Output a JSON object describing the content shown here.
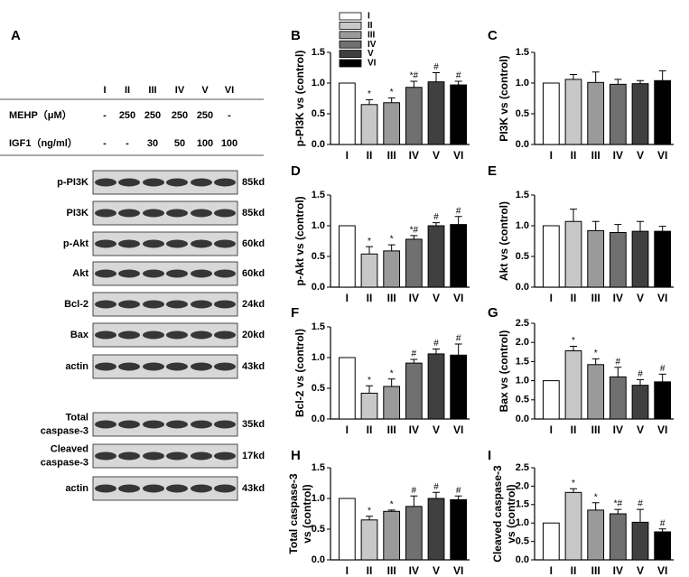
{
  "blot": {
    "panel": "A",
    "lanes": [
      "I",
      "II",
      "III",
      "IV",
      "V",
      "VI"
    ],
    "treatments": [
      {
        "label": "MEHP（μM）",
        "cells": [
          "-",
          "250",
          "250",
          "250",
          "250",
          "-"
        ]
      },
      {
        "label": "IGF1（ng/ml）",
        "cells": [
          "-",
          "-",
          "30",
          "50",
          "100",
          "100"
        ]
      }
    ],
    "rows": [
      {
        "label": [
          "p-PI3K"
        ],
        "size": "85kd"
      },
      {
        "label": [
          "PI3K"
        ],
        "size": "85kd"
      },
      {
        "label": [
          "p-Akt"
        ],
        "size": "60kd"
      },
      {
        "label": [
          "Akt"
        ],
        "size": "60kd"
      },
      {
        "label": [
          "Bcl-2"
        ],
        "size": "24kd"
      },
      {
        "label": [
          "Bax"
        ],
        "size": "20kd"
      },
      {
        "label": [
          "actin"
        ],
        "size": "43kd"
      },
      {
        "label": [
          "Total",
          "caspase-3"
        ],
        "size": "35kd"
      },
      {
        "label": [
          "Cleaved",
          "caspase-3"
        ],
        "size": "17kd"
      },
      {
        "label": [
          "actin"
        ],
        "size": "43kd"
      }
    ]
  },
  "chart_data": [
    {
      "type": "bar",
      "panel": "B",
      "ylabel": [
        "p-PI3K vs (control)"
      ],
      "categories": [
        "I",
        "II",
        "III",
        "IV",
        "V",
        "VI"
      ],
      "colors": [
        "#ffffff",
        "#c8c8c8",
        "#9a9a9a",
        "#707070",
        "#404040",
        "#000000"
      ],
      "values": [
        1.0,
        0.65,
        0.68,
        0.93,
        1.02,
        0.97
      ],
      "errors": [
        0,
        0.08,
        0.08,
        0.1,
        0.15,
        0.06
      ],
      "annotations": [
        null,
        "*",
        "*",
        "*#",
        "#",
        "#"
      ],
      "ylim": [
        0,
        1.5
      ],
      "yticks": [
        {
          "value": 0,
          "label": "0.0"
        },
        {
          "value": 0.5,
          "label": "0.5"
        },
        {
          "value": 1,
          "label": "1.0"
        },
        {
          "value": 1.5,
          "label": "1.5"
        }
      ]
    },
    {
      "type": "bar",
      "panel": "C",
      "ylabel": [
        "PI3K vs (control)"
      ],
      "categories": [
        "I",
        "II",
        "III",
        "IV",
        "V",
        "VI"
      ],
      "colors": [
        "#ffffff",
        "#c8c8c8",
        "#9a9a9a",
        "#707070",
        "#404040",
        "#000000"
      ],
      "values": [
        1.0,
        1.06,
        1.01,
        0.98,
        0.99,
        1.04
      ],
      "errors": [
        0,
        0.08,
        0.17,
        0.08,
        0.05,
        0.16
      ],
      "ylim": [
        0,
        1.5
      ],
      "yticks": [
        {
          "value": 0,
          "label": "0.0"
        },
        {
          "value": 0.5,
          "label": "0.5"
        },
        {
          "value": 1,
          "label": "1.0"
        },
        {
          "value": 1.5,
          "label": "1.5"
        }
      ]
    },
    {
      "type": "bar",
      "panel": "D",
      "ylabel": [
        "p-Akt vs (control)"
      ],
      "categories": [
        "I",
        "II",
        "III",
        "IV",
        "V",
        "VI"
      ],
      "colors": [
        "#ffffff",
        "#c8c8c8",
        "#9a9a9a",
        "#707070",
        "#404040",
        "#000000"
      ],
      "values": [
        1.0,
        0.54,
        0.59,
        0.78,
        1.0,
        1.02
      ],
      "errors": [
        0,
        0.12,
        0.1,
        0.06,
        0.05,
        0.13
      ],
      "annotations": [
        null,
        "*",
        "*",
        "*#",
        "#",
        "#"
      ],
      "ylim": [
        0,
        1.5
      ],
      "yticks": [
        {
          "value": 0,
          "label": "0.0"
        },
        {
          "value": 0.5,
          "label": "0.5"
        },
        {
          "value": 1,
          "label": "1.0"
        },
        {
          "value": 1.5,
          "label": "1.5"
        }
      ]
    },
    {
      "type": "bar",
      "panel": "E",
      "ylabel": [
        "Akt vs (control)"
      ],
      "categories": [
        "I",
        "II",
        "III",
        "IV",
        "V",
        "VI"
      ],
      "colors": [
        "#ffffff",
        "#c8c8c8",
        "#9a9a9a",
        "#707070",
        "#404040",
        "#000000"
      ],
      "values": [
        1.0,
        1.07,
        0.92,
        0.89,
        0.91,
        0.91
      ],
      "errors": [
        0,
        0.2,
        0.15,
        0.13,
        0.16,
        0.08
      ],
      "ylim": [
        0,
        1.5
      ],
      "yticks": [
        {
          "value": 0,
          "label": "0.0"
        },
        {
          "value": 0.5,
          "label": "0.5"
        },
        {
          "value": 1,
          "label": "1.0"
        },
        {
          "value": 1.5,
          "label": "1.5"
        }
      ]
    },
    {
      "type": "bar",
      "panel": "F",
      "ylabel": [
        "Bcl-2 vs (control)"
      ],
      "categories": [
        "I",
        "II",
        "III",
        "IV",
        "V",
        "VI"
      ],
      "colors": [
        "#ffffff",
        "#c8c8c8",
        "#9a9a9a",
        "#707070",
        "#404040",
        "#000000"
      ],
      "values": [
        1.0,
        0.42,
        0.53,
        0.91,
        1.06,
        1.04
      ],
      "errors": [
        0,
        0.12,
        0.12,
        0.06,
        0.08,
        0.18
      ],
      "annotations": [
        null,
        "*",
        "*",
        "#",
        "#",
        "#"
      ],
      "ylim": [
        0,
        1.5
      ],
      "yticks": [
        {
          "value": 0,
          "label": "0.0"
        },
        {
          "value": 0.5,
          "label": "0.5"
        },
        {
          "value": 1,
          "label": "1.0"
        },
        {
          "value": 1.5,
          "label": "1.5"
        }
      ]
    },
    {
      "type": "bar",
      "panel": "G",
      "ylabel": [
        "Bax vs (control)"
      ],
      "categories": [
        "I",
        "II",
        "III",
        "IV",
        "V",
        "VI"
      ],
      "colors": [
        "#ffffff",
        "#c8c8c8",
        "#9a9a9a",
        "#707070",
        "#404040",
        "#000000"
      ],
      "values": [
        1.0,
        1.78,
        1.42,
        1.1,
        0.88,
        0.97
      ],
      "errors": [
        0,
        0.12,
        0.15,
        0.25,
        0.15,
        0.2
      ],
      "annotations": [
        null,
        "*",
        "*",
        "#",
        "#",
        "#"
      ],
      "ylim": [
        0,
        2.5
      ],
      "yticks": [
        {
          "value": 0,
          "label": "0.0"
        },
        {
          "value": 0.5,
          "label": "0.5"
        },
        {
          "value": 1,
          "label": "1.0"
        },
        {
          "value": 1.5,
          "label": "1.5"
        },
        {
          "value": 2,
          "label": "2.0"
        },
        {
          "value": 2.5,
          "label": "2.5"
        }
      ]
    },
    {
      "type": "bar",
      "panel": "H",
      "ylabel": [
        "Total  caspase-3",
        "vs (control)"
      ],
      "categories": [
        "I",
        "II",
        "III",
        "IV",
        "V",
        "VI"
      ],
      "colors": [
        "#ffffff",
        "#c8c8c8",
        "#9a9a9a",
        "#707070",
        "#404040",
        "#000000"
      ],
      "values": [
        1.0,
        0.65,
        0.79,
        0.87,
        1.0,
        0.98
      ],
      "errors": [
        0,
        0.06,
        0.02,
        0.17,
        0.1,
        0.06
      ],
      "annotations": [
        null,
        "*",
        "*",
        "#",
        "#",
        "#"
      ],
      "ylim": [
        0,
        1.5
      ],
      "yticks": [
        {
          "value": 0,
          "label": "0.0"
        },
        {
          "value": 0.5,
          "label": "0.5"
        },
        {
          "value": 1,
          "label": "1.0"
        },
        {
          "value": 1.5,
          "label": "1.5"
        }
      ]
    },
    {
      "type": "bar",
      "panel": "I",
      "ylabel": [
        "Cleaved  caspase-3",
        "vs (control)"
      ],
      "categories": [
        "I",
        "II",
        "III",
        "IV",
        "V",
        "VI"
      ],
      "colors": [
        "#ffffff",
        "#c8c8c8",
        "#9a9a9a",
        "#707070",
        "#404040",
        "#000000"
      ],
      "values": [
        1.0,
        1.83,
        1.35,
        1.25,
        1.02,
        0.76
      ],
      "errors": [
        0,
        0.1,
        0.2,
        0.12,
        0.35,
        0.08
      ],
      "annotations": [
        null,
        "*",
        "*",
        "*#",
        "#",
        "#"
      ],
      "ylim": [
        0,
        2.5
      ],
      "yticks": [
        {
          "value": 0,
          "label": "0.0"
        },
        {
          "value": 0.5,
          "label": "0.5"
        },
        {
          "value": 1,
          "label": "1.0"
        },
        {
          "value": 1.5,
          "label": "1.5"
        },
        {
          "value": 2,
          "label": "2.0"
        },
        {
          "value": 2.5,
          "label": "2.5"
        }
      ]
    }
  ]
}
